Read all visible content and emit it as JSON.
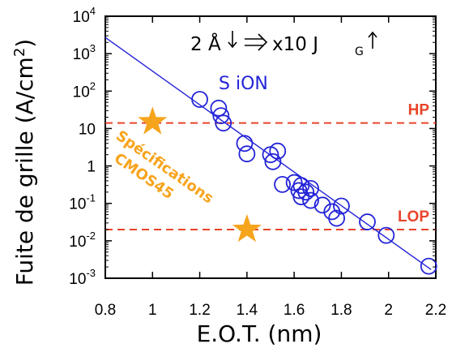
{
  "chart_data": {
    "type": "scatter",
    "xlabel": "E.O.T. (nm)",
    "ylabel": "Fuite de grille (A/cm",
    "ylabel_sup": "2",
    "ylabel_close": ")",
    "xlim": [
      0.8,
      2.2
    ],
    "ylim_log10": [
      -3,
      4
    ],
    "yscale": "log",
    "x_ticks": [
      {
        "value": 0.8,
        "label": "0.8"
      },
      {
        "value": 1.0,
        "label": "1"
      },
      {
        "value": 1.2,
        "label": "1.2"
      },
      {
        "value": 1.4,
        "label": "1.4"
      },
      {
        "value": 1.6,
        "label": "1.6"
      },
      {
        "value": 1.8,
        "label": "1.8"
      },
      {
        "value": 2.0,
        "label": "2"
      },
      {
        "value": 2.2,
        "label": "2.2"
      }
    ],
    "y_ticks": [
      {
        "exp": 4,
        "base": "10",
        "sup": "4"
      },
      {
        "exp": 3,
        "base": "10",
        "sup": "3"
      },
      {
        "exp": 2,
        "base": "10",
        "sup": "2"
      },
      {
        "exp": 1,
        "base": "10",
        "sup": ""
      },
      {
        "exp": 0,
        "base": "1",
        "sup": ""
      },
      {
        "exp": -1,
        "base": "10",
        "sup": "-1"
      },
      {
        "exp": -2,
        "base": "10",
        "sup": "-2"
      },
      {
        "exp": -3,
        "base": "10",
        "sup": "-3"
      }
    ],
    "series": [
      {
        "name": "SiON",
        "color": "#2323d8",
        "marker": "open-circle",
        "points": [
          [
            1.2,
            60
          ],
          [
            1.28,
            35
          ],
          [
            1.29,
            22
          ],
          [
            1.3,
            14
          ],
          [
            1.39,
            4.0
          ],
          [
            1.4,
            2.1
          ],
          [
            1.5,
            2.0
          ],
          [
            1.51,
            1.3
          ],
          [
            1.53,
            2.5
          ],
          [
            1.55,
            0.32
          ],
          [
            1.6,
            0.36
          ],
          [
            1.62,
            0.22
          ],
          [
            1.63,
            0.15
          ],
          [
            1.63,
            0.3
          ],
          [
            1.65,
            0.2
          ],
          [
            1.67,
            0.12
          ],
          [
            1.67,
            0.25
          ],
          [
            1.72,
            0.09
          ],
          [
            1.76,
            0.06
          ],
          [
            1.78,
            0.04
          ],
          [
            1.8,
            0.085
          ],
          [
            1.91,
            0.032
          ],
          [
            1.99,
            0.014
          ],
          [
            2.17,
            0.0021
          ]
        ]
      }
    ],
    "trend_line": {
      "color": "#2323d8",
      "from": [
        0.8,
        2700
      ],
      "to": [
        2.18,
        0.0017
      ]
    },
    "reference_lines": [
      {
        "label": "HP",
        "value": 14,
        "color": "#e8452a"
      },
      {
        "label": "LOP",
        "value": 0.02,
        "color": "#e8452a"
      }
    ],
    "spec_markers": [
      {
        "x": 1.0,
        "y": 15,
        "color": "#f7a41d"
      },
      {
        "x": 1.4,
        "y": 0.02,
        "color": "#f7a41d"
      }
    ],
    "annotations": {
      "series_label": "S iON",
      "rule": {
        "lead": "2 Å",
        "middle": "x10 J",
        "sub": "G"
      },
      "spec_lines": [
        "Spécifications",
        "CMOS45"
      ],
      "spec_color": "#f7a41d"
    }
  }
}
